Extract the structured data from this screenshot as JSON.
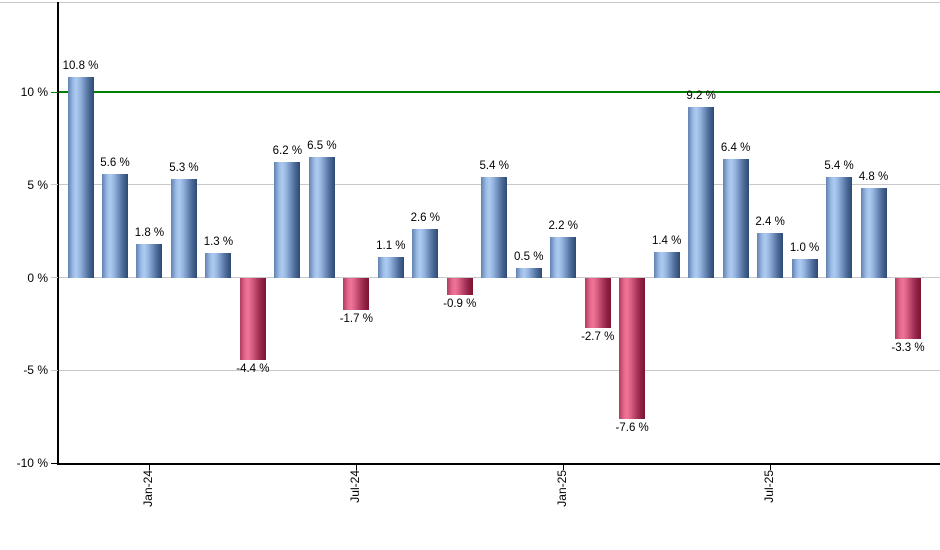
{
  "chart_data": {
    "type": "bar",
    "title": "",
    "xlabel": "",
    "ylabel": "",
    "values": [
      10.8,
      5.6,
      1.8,
      5.3,
      1.3,
      -4.4,
      6.2,
      6.5,
      -1.7,
      1.1,
      2.6,
      -0.9,
      5.4,
      0.5,
      2.2,
      -2.7,
      -7.6,
      1.4,
      9.2,
      6.4,
      2.4,
      1.0,
      5.4,
      4.8,
      -3.3
    ],
    "value_labels": [
      "10.8 %",
      "5.6 %",
      "1.8 %",
      "5.3 %",
      "1.3 %",
      "-4.4 %",
      "6.2 %",
      "6.5 %",
      "-1.7 %",
      "1.1 %",
      "2.6 %",
      "-0.9 %",
      "5.4 %",
      "0.5 %",
      "2.2 %",
      "-2.7 %",
      "-7.6 %",
      "1.4 %",
      "9.2 %",
      "6.4 %",
      "2.4 %",
      "1.0 %",
      "5.4 %",
      "4.8 %",
      "-3.3 %"
    ],
    "x_ticks": [
      {
        "label": "Jan-24",
        "bar_index": 2
      },
      {
        "label": "Jul-24",
        "bar_index": 8
      },
      {
        "label": "Jan-25",
        "bar_index": 14
      },
      {
        "label": "Jul-25",
        "bar_index": 20
      }
    ],
    "y_ticks": [
      {
        "value": 10,
        "label": "10 %"
      },
      {
        "value": 5,
        "label": "5 %"
      },
      {
        "value": 0,
        "label": "0 %"
      },
      {
        "value": -5,
        "label": "-5 %"
      },
      {
        "value": -10,
        "label": "-10 %"
      }
    ],
    "y_range": [
      -10,
      14.9
    ],
    "grid": true,
    "legend": "none",
    "reference_line": {
      "value": 10,
      "color": "#008000"
    },
    "colors": {
      "positive_bar_light": "#aecbf0",
      "positive_bar_dark": "#2c4a72",
      "negative_bar_light": "#f07496",
      "negative_bar_dark": "#7c1430",
      "gridline": "#c8c8c8",
      "axis": "#000000",
      "background": "#ffffff"
    }
  }
}
